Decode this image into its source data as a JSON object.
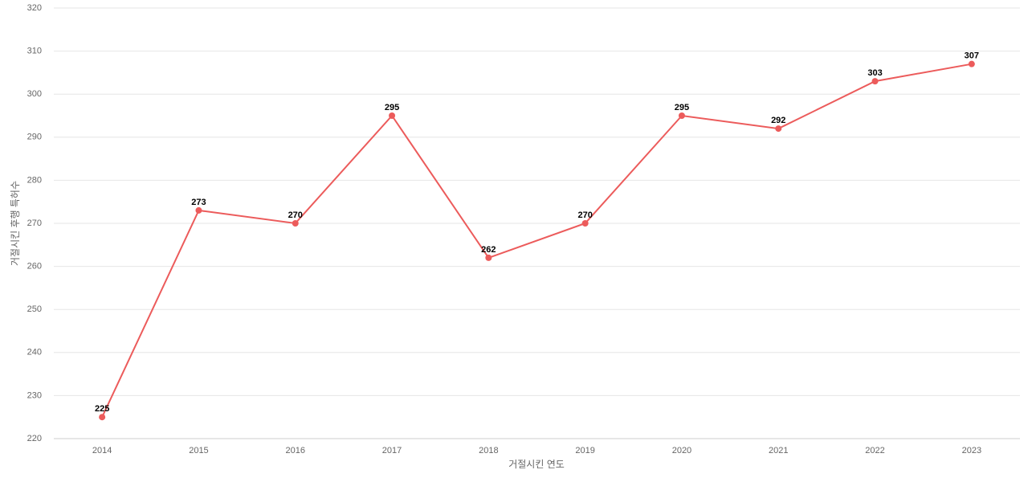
{
  "chart_data": {
    "type": "line",
    "x_label": "거절시킨 연도",
    "y_label": "거절시킨 후행 특허수",
    "categories": [
      "2014",
      "2015",
      "2016",
      "2017",
      "2018",
      "2019",
      "2020",
      "2021",
      "2022",
      "2023"
    ],
    "series": [
      {
        "color": "#ec5b5b",
        "values": [
          225,
          273,
          270,
          295,
          262,
          270,
          295,
          292,
          303,
          307
        ]
      }
    ],
    "ylim": [
      220,
      320
    ],
    "yticks": [
      220,
      230,
      240,
      250,
      260,
      270,
      280,
      290,
      300,
      310,
      320
    ],
    "grid": true
  }
}
